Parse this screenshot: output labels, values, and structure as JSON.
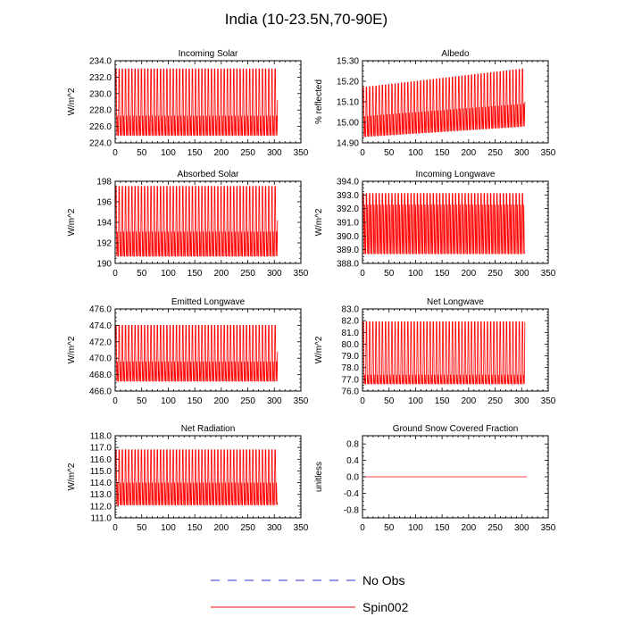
{
  "figure_title": "India (10-23.5N,70-90E)",
  "colors": {
    "obs": "#2b2bd6",
    "spin": "#ff0000",
    "axis": "#000000"
  },
  "legend": {
    "obs_label": "No Obs",
    "spin_label": "Spin002"
  },
  "chart_data": [
    {
      "type": "line",
      "title": "Incoming Solar",
      "ylabel": "W/m^2",
      "xlim": [
        0,
        350
      ],
      "xticks": [
        0,
        50,
        100,
        150,
        200,
        250,
        300,
        350
      ],
      "ylim": [
        224,
        234
      ],
      "yticks": [
        224,
        226,
        228,
        230,
        232,
        234
      ],
      "ytick_labels": [
        "224.0",
        "226.0",
        "228.0",
        "230.0",
        "232.0",
        "234.0"
      ],
      "series": [
        {
          "name": "Spin002",
          "x_range": [
            0,
            310
          ],
          "period_months": 6,
          "cycle_max": 233.0,
          "cycle_min": 224.9,
          "secondary_peak": 227.3,
          "end_value": 229.2
        }
      ]
    },
    {
      "type": "line",
      "title": "Albedo",
      "ylabel": "% reflected",
      "xlim": [
        0,
        350
      ],
      "xticks": [
        0,
        50,
        100,
        150,
        200,
        250,
        300,
        350
      ],
      "ylim": [
        14.9,
        15.3
      ],
      "yticks": [
        14.9,
        15.0,
        15.1,
        15.2,
        15.3
      ],
      "ytick_labels": [
        "14.90",
        "15.00",
        "15.10",
        "15.20",
        "15.30"
      ],
      "series": [
        {
          "name": "Spin002",
          "x_range": [
            0,
            310
          ],
          "period_months": 6,
          "cycle_max_start": 15.17,
          "cycle_max_end": 15.26,
          "cycle_min_start": 14.93,
          "cycle_min_end": 14.98,
          "secondary_start": 15.03,
          "secondary_end": 15.09,
          "end_value": 15.1
        }
      ]
    },
    {
      "type": "line",
      "title": "Absorbed Solar",
      "ylabel": "W/m^2",
      "xlim": [
        0,
        350
      ],
      "xticks": [
        0,
        50,
        100,
        150,
        200,
        250,
        300,
        350
      ],
      "ylim": [
        190,
        198
      ],
      "yticks": [
        190,
        192,
        194,
        196,
        198
      ],
      "ytick_labels": [
        "190",
        "192",
        "194",
        "196",
        "198"
      ],
      "series": [
        {
          "name": "Spin002",
          "x_range": [
            0,
            310
          ],
          "period_months": 6,
          "cycle_max": 197.5,
          "cycle_min": 190.7,
          "secondary_peak": 193.1,
          "end_value": 194.2
        }
      ]
    },
    {
      "type": "line",
      "title": "Incoming Longwave",
      "ylabel": "W/m^2",
      "xlim": [
        0,
        350
      ],
      "xticks": [
        0,
        50,
        100,
        150,
        200,
        250,
        300,
        350
      ],
      "ylim": [
        388,
        394
      ],
      "yticks": [
        388,
        389,
        390,
        391,
        392,
        393,
        394
      ],
      "ytick_labels": [
        "388.0",
        "389.0",
        "390.0",
        "391.0",
        "392.0",
        "393.0",
        "394.0"
      ],
      "series": [
        {
          "name": "Spin002",
          "x_range": [
            0,
            310
          ],
          "period_months": 6,
          "cycle_max": 393.1,
          "cycle_min": 388.7,
          "secondary_peak": 392.3,
          "end_value": 388.8
        }
      ]
    },
    {
      "type": "line",
      "title": "Emitted Longwave",
      "ylabel": "W/m^2",
      "xlim": [
        0,
        350
      ],
      "xticks": [
        0,
        50,
        100,
        150,
        200,
        250,
        300,
        350
      ],
      "ylim": [
        466,
        476
      ],
      "yticks": [
        466,
        468,
        470,
        472,
        474,
        476
      ],
      "ytick_labels": [
        "466.0",
        "468.0",
        "470.0",
        "472.0",
        "474.0",
        "476.0"
      ],
      "series": [
        {
          "name": "Spin002",
          "x_range": [
            0,
            310
          ],
          "period_months": 6,
          "cycle_max": 474.0,
          "cycle_min": 467.2,
          "secondary_peak": 469.6,
          "end_value": 470.8
        }
      ]
    },
    {
      "type": "line",
      "title": "Net Longwave",
      "ylabel": "W/m^2",
      "xlim": [
        0,
        350
      ],
      "xticks": [
        0,
        50,
        100,
        150,
        200,
        250,
        300,
        350
      ],
      "ylim": [
        76,
        83
      ],
      "yticks": [
        76,
        77,
        78,
        79,
        80,
        81,
        82,
        83
      ],
      "ytick_labels": [
        "76.0",
        "77.0",
        "78.0",
        "79.0",
        "80.0",
        "81.0",
        "82.0",
        "83.0"
      ],
      "series": [
        {
          "name": "Spin002",
          "x_range": [
            0,
            310
          ],
          "period_months": 6,
          "cycle_max": 81.9,
          "cycle_min": 76.6,
          "secondary_peak": 77.4,
          "end_value": 81.9
        }
      ]
    },
    {
      "type": "line",
      "title": "Net Radiation",
      "ylabel": "W/m^2",
      "xlim": [
        0,
        350
      ],
      "xticks": [
        0,
        50,
        100,
        150,
        200,
        250,
        300,
        350
      ],
      "ylim": [
        111,
        118
      ],
      "yticks": [
        111,
        112,
        113,
        114,
        115,
        116,
        117,
        118
      ],
      "ytick_labels": [
        "111.0",
        "112.0",
        "113.0",
        "114.0",
        "115.0",
        "116.0",
        "117.0",
        "118.0"
      ],
      "series": [
        {
          "name": "Spin002",
          "x_range": [
            0,
            310
          ],
          "period_months": 6,
          "cycle_max": 116.8,
          "cycle_min": 112.1,
          "secondary_peak": 114.0,
          "end_value": 112.3
        }
      ]
    },
    {
      "type": "line",
      "title": "Ground Snow Covered Fraction",
      "ylabel": "unitless",
      "xlim": [
        0,
        350
      ],
      "xticks": [
        0,
        50,
        100,
        150,
        200,
        250,
        300,
        350
      ],
      "ylim": [
        -1,
        1
      ],
      "yticks": [
        -0.8,
        -0.4,
        0,
        0.4,
        0.8
      ],
      "ytick_labels": [
        "-0.8",
        "-0.4",
        "0.0",
        "0.4",
        "0.8"
      ],
      "series": [
        {
          "name": "Spin002",
          "x_range": [
            0,
            310
          ],
          "constant": 0.0
        }
      ]
    }
  ]
}
